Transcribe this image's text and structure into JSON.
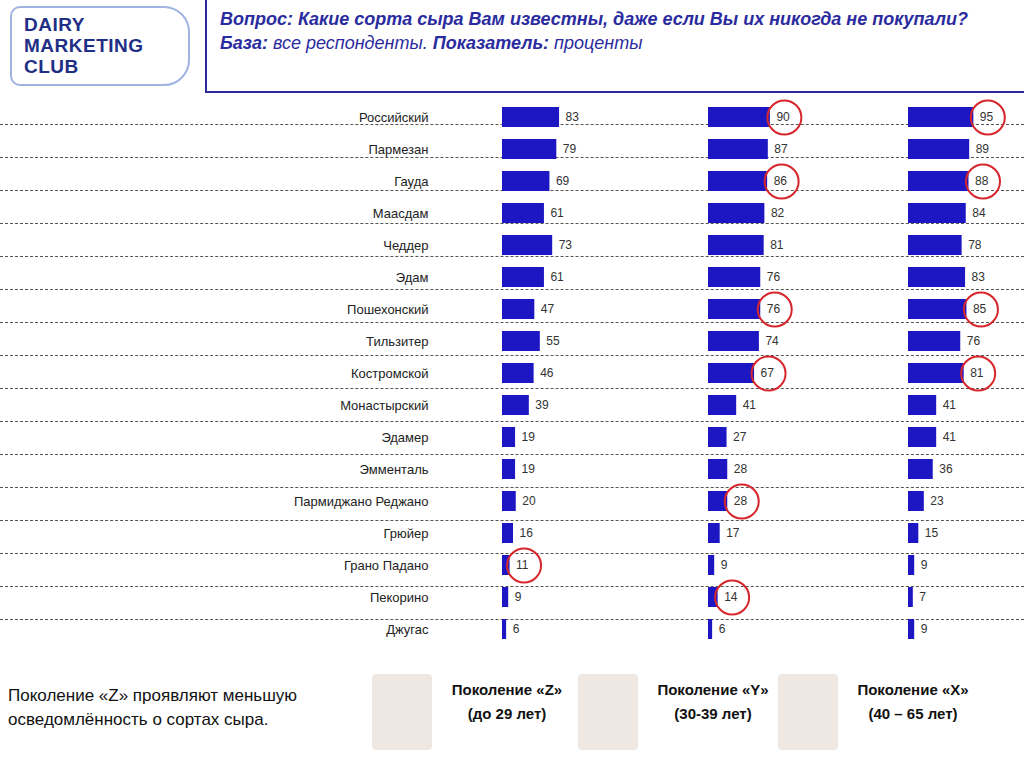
{
  "header": {
    "logo": [
      "DAIRY",
      "MARKETING",
      "CLUB"
    ],
    "title": "Вопрос: Какие сорта сыра Вам известны, даже если Вы их никогда не покупали?",
    "subtitle": "База: все респонденты. Показатель: проценты"
  },
  "chart_data": {
    "type": "bar",
    "orientation": "horizontal",
    "categories": [
      "Российский",
      "Пармезан",
      "Гауда",
      "Маасдам",
      "Чеддер",
      "Эдам",
      "Пошехонский",
      "Тильзитер",
      "Костромской",
      "Монастырский",
      "Эдамер",
      "Эмменталь",
      "Пармиджано Реджано",
      "Грюйер",
      "Грано Падано",
      "Пекорино",
      "Джугас"
    ],
    "series": [
      {
        "name": "Поколение «Z»",
        "age": "(до 29 лет)",
        "values": [
          83,
          79,
          69,
          61,
          73,
          61,
          47,
          55,
          46,
          39,
          19,
          19,
          20,
          16,
          11,
          9,
          6
        ],
        "highlighted": [
          false,
          false,
          false,
          false,
          false,
          false,
          false,
          false,
          false,
          false,
          false,
          false,
          false,
          false,
          true,
          false,
          false
        ]
      },
      {
        "name": "Поколение «Y»",
        "age": "(30-39 лет)",
        "values": [
          90,
          87,
          86,
          82,
          81,
          76,
          76,
          74,
          67,
          41,
          27,
          28,
          28,
          17,
          9,
          14,
          6
        ],
        "highlighted": [
          true,
          false,
          true,
          false,
          false,
          false,
          true,
          false,
          true,
          false,
          false,
          false,
          true,
          false,
          false,
          true,
          false
        ]
      },
      {
        "name": "Поколение «X»",
        "age": "(40 – 65 лет)",
        "values": [
          95,
          89,
          88,
          84,
          78,
          83,
          85,
          76,
          81,
          41,
          41,
          36,
          23,
          15,
          9,
          7,
          9
        ],
        "highlighted": [
          true,
          false,
          true,
          false,
          false,
          false,
          true,
          false,
          true,
          false,
          false,
          false,
          false,
          false,
          false,
          false,
          false
        ]
      }
    ],
    "color": "#1c17c2",
    "xlim": [
      0,
      160
    ],
    "tick_labels": "y",
    "data_labels": true,
    "grid": false
  },
  "caption": "Поколение «Z» проявляют меньшую осведомлённость о сортах сыра."
}
